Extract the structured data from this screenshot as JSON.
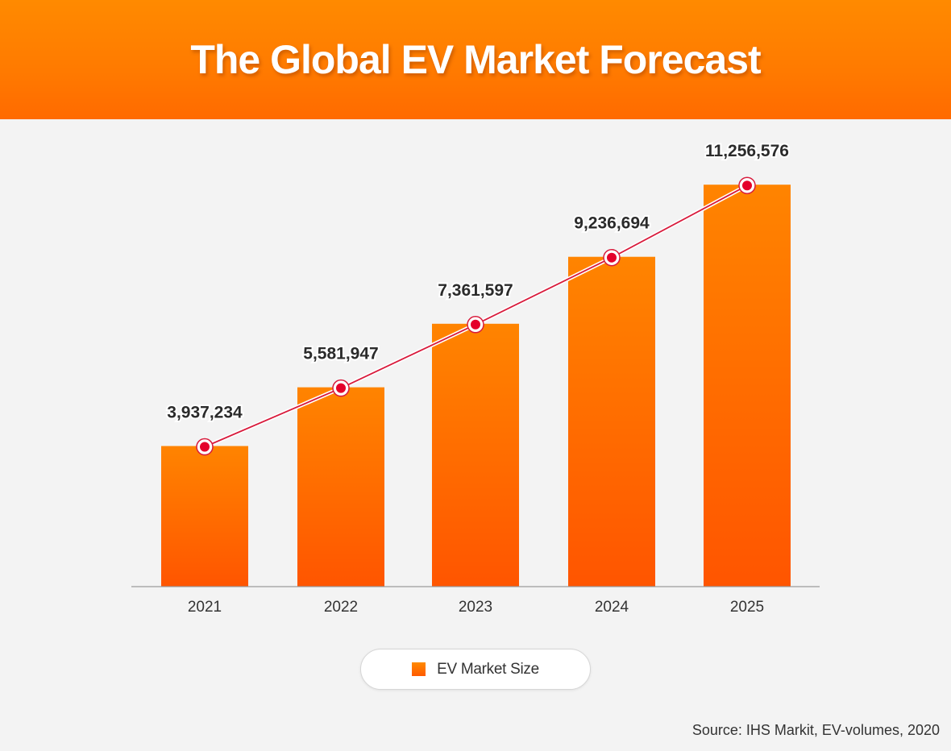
{
  "title": "The Global EV Market Forecast",
  "legend": {
    "label": "EV Market Size"
  },
  "source": "Source: IHS Markit, EV-volumes, 2020",
  "colors": {
    "header": "#ff7a00",
    "bar_top": "#ff8400",
    "bar_bottom": "#ff5500",
    "line": "#d81b3c",
    "marker": "#e4002b",
    "background": "#f3f3f3"
  },
  "chart_data": {
    "type": "bar",
    "categories": [
      "2021",
      "2022",
      "2023",
      "2024",
      "2025"
    ],
    "series": [
      {
        "name": "EV Market Size",
        "values": [
          3937234,
          5581947,
          7361597,
          9236694,
          11256576
        ]
      }
    ],
    "data_labels": [
      "3,937,234",
      "5,581,947",
      "7,361,597",
      "9,236,694",
      "11,256,576"
    ],
    "overlay": "line-with-markers",
    "ylim": [
      0,
      12500000
    ],
    "grid": false,
    "legend_position": "bottom-center"
  }
}
